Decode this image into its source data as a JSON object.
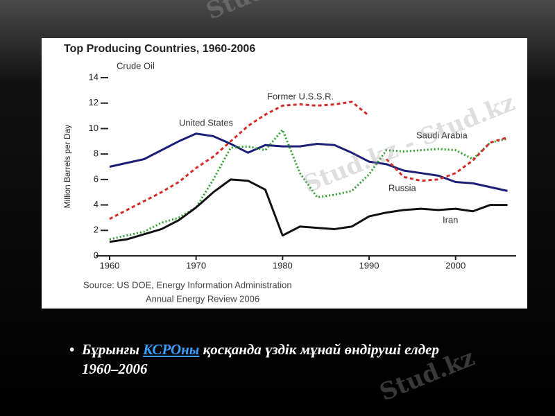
{
  "chart_data": {
    "type": "line",
    "title": "Top Producing Countries, 1960-2006",
    "subtitle": "Crude Oil",
    "y_label": "Million Barrels per Day",
    "source": [
      "Source: US DOE, Energy Information Administration",
      "Annual Energy Review 2006"
    ],
    "x": [
      1960,
      1962,
      1964,
      1966,
      1968,
      1970,
      1972,
      1974,
      1976,
      1978,
      1980,
      1982,
      1984,
      1986,
      1988,
      1990,
      1992,
      1994,
      1996,
      1998,
      2000,
      2002,
      2004,
      2006
    ],
    "series": [
      {
        "name": "Former U.S.S.R.",
        "color": "#d42a2a",
        "style": "dashed",
        "values": [
          2.9,
          3.6,
          4.3,
          5.0,
          5.8,
          6.9,
          7.8,
          9.0,
          10.2,
          11.1,
          11.8,
          11.9,
          11.8,
          11.9,
          12.1,
          11.0,
          null,
          null,
          null,
          null,
          null,
          null,
          null,
          null
        ]
      },
      {
        "name": "United States",
        "color": "#1c1f78",
        "style": "solid",
        "values": [
          7.0,
          7.3,
          7.6,
          8.3,
          9.0,
          9.6,
          9.4,
          8.8,
          8.1,
          8.7,
          8.6,
          8.6,
          8.8,
          8.7,
          8.1,
          7.4,
          7.2,
          6.7,
          6.5,
          6.3,
          5.8,
          5.7,
          5.4,
          5.1
        ]
      },
      {
        "name": "Saudi Arabia",
        "color": "#2e9e2e",
        "style": "dotted",
        "values": [
          1.3,
          1.6,
          1.9,
          2.6,
          3.0,
          3.8,
          6.0,
          8.5,
          8.6,
          8.3,
          9.9,
          6.5,
          4.6,
          4.8,
          5.1,
          6.4,
          8.3,
          8.2,
          8.3,
          8.4,
          8.3,
          7.6,
          8.9,
          9.2
        ]
      },
      {
        "name": "Russia",
        "color": "#d42a2a",
        "style": "dashed",
        "values": [
          null,
          null,
          null,
          null,
          null,
          null,
          null,
          null,
          null,
          null,
          null,
          null,
          null,
          null,
          null,
          null,
          7.6,
          6.2,
          5.9,
          6.0,
          6.5,
          7.5,
          8.9,
          9.3
        ]
      },
      {
        "name": "Iran",
        "color": "#111111",
        "style": "solid",
        "values": [
          1.1,
          1.3,
          1.7,
          2.1,
          2.8,
          3.8,
          5.0,
          6.0,
          5.9,
          5.2,
          1.6,
          2.3,
          2.2,
          2.1,
          2.3,
          3.1,
          3.4,
          3.6,
          3.7,
          3.6,
          3.7,
          3.5,
          4.0,
          4.0
        ]
      }
    ],
    "xlim": [
      1958.4,
      2007
    ],
    "xticks": [
      1960,
      1970,
      1980,
      1990,
      2000
    ],
    "ylim": [
      0,
      14
    ],
    "yticks": [
      0,
      2,
      4,
      6,
      8,
      10,
      12,
      14
    ]
  },
  "caption": {
    "before": "Бұрынғы ",
    "link": "КСРОны",
    "after": " қосқанда үздік мұнай өндіруші елдер 1960–2006"
  },
  "watermarks": [
    "Stud.kz - Stud.kz",
    "Stud.kz - Stud.kz",
    "Stud.kz"
  ]
}
